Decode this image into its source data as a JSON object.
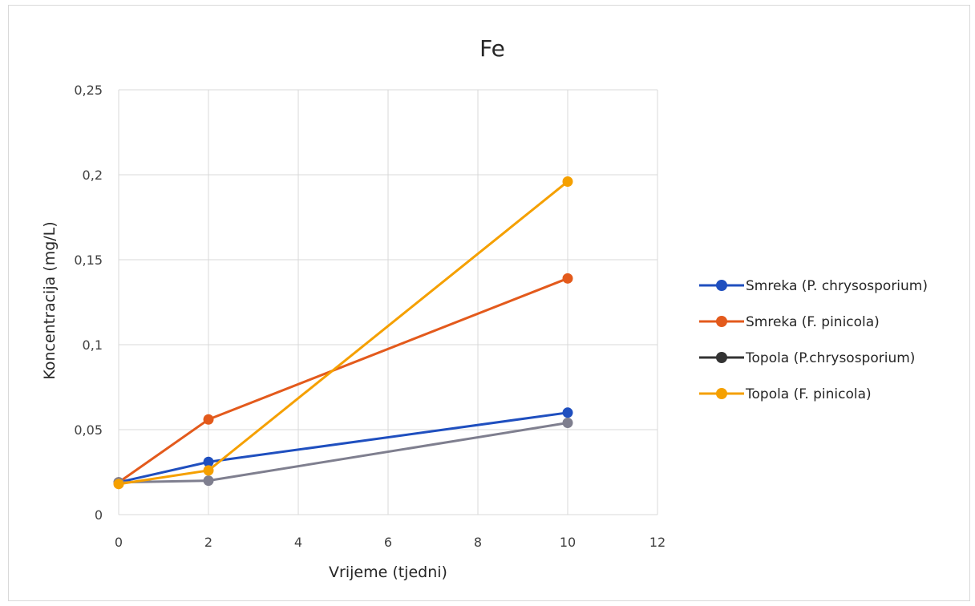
{
  "chart_data": {
    "type": "line",
    "title": "Fe",
    "xlabel": "Vrijeme (tjedni)",
    "ylabel": "Koncentracija (mg/L)",
    "xlim": [
      0,
      12
    ],
    "ylim": [
      0,
      0.25
    ],
    "xticks": [
      "0",
      "2",
      "4",
      "6",
      "8",
      "10",
      "12"
    ],
    "yticks": [
      "0",
      "0,05",
      "0,1",
      "0,15",
      "0,2",
      "0,25"
    ],
    "grid": true,
    "legend_position": "right",
    "series": [
      {
        "name": "Smreka (P. chrysosporium)",
        "color": "#1f4fbf",
        "x": [
          0,
          2,
          10
        ],
        "y": [
          0.019,
          0.031,
          0.06
        ]
      },
      {
        "name": "Smreka (F. pinicola)",
        "color": "#e35a1c",
        "x": [
          0,
          2,
          10
        ],
        "y": [
          0.019,
          0.056,
          0.139
        ]
      },
      {
        "name": "Topola (P.chrysosporium)",
        "color": "#7f7f8f",
        "legend_color": "#333333",
        "x": [
          0,
          2,
          10
        ],
        "y": [
          0.019,
          0.02,
          0.054
        ]
      },
      {
        "name": "Topola (F. pinicola)",
        "color": "#f5a000",
        "x": [
          0,
          2,
          10
        ],
        "y": [
          0.018,
          0.026,
          0.196
        ]
      }
    ]
  }
}
